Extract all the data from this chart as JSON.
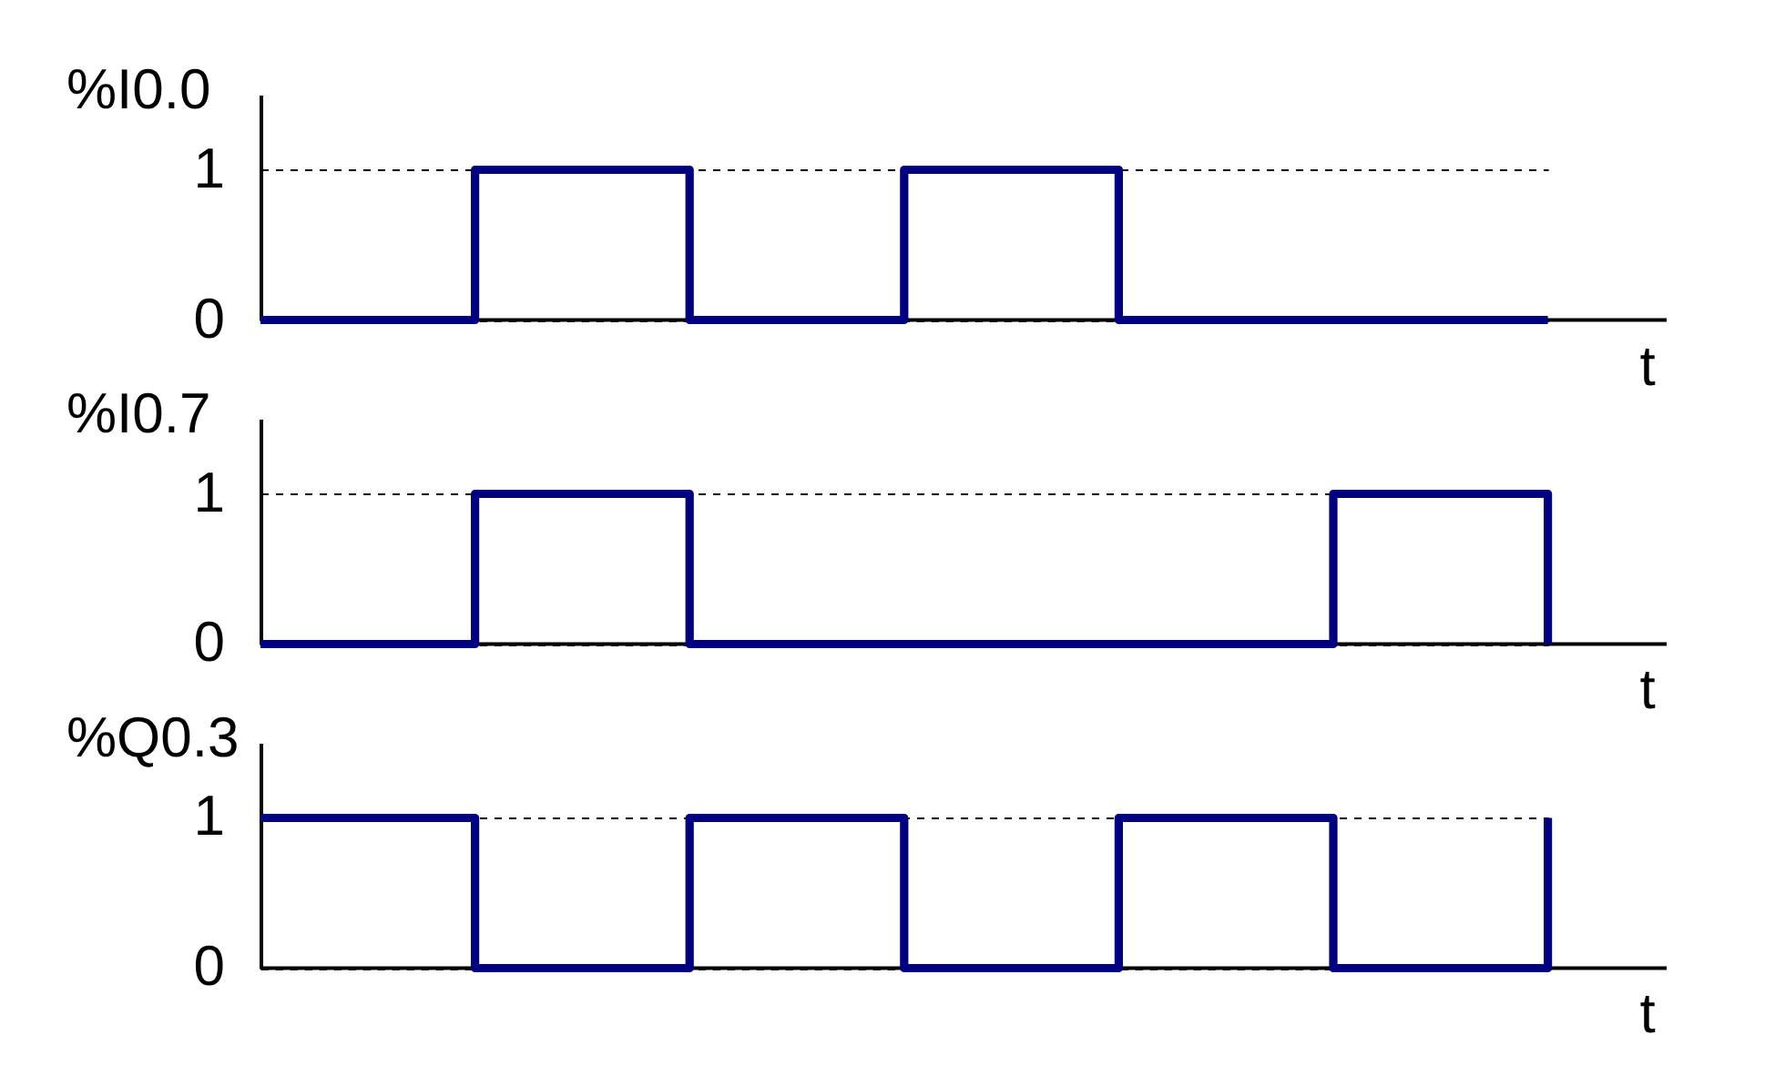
{
  "chart_data": [
    {
      "type": "step",
      "ylabel": "%I0.0",
      "xlabel": "t",
      "categories": [
        null,
        null,
        null,
        null,
        null,
        null,
        null
      ],
      "values": [
        0,
        1,
        0,
        1,
        0,
        0,
        0
      ],
      "color": "#000080",
      "ylim": [
        0,
        1.5
      ],
      "yticks": [
        0,
        1
      ],
      "grid": "y",
      "tick_labels": "y",
      "line_style": "solid"
    },
    {
      "type": "step",
      "ylabel": "%I0.7",
      "xlabel": "t",
      "categories": [
        null,
        null,
        null,
        null,
        null,
        null,
        null
      ],
      "values": [
        0,
        1,
        0,
        0,
        0,
        1,
        0
      ],
      "color": "#000080",
      "ylim": [
        0,
        1.5
      ],
      "yticks": [
        0,
        1
      ],
      "grid": "y",
      "tick_labels": "y",
      "line_style": "solid"
    },
    {
      "type": "step",
      "ylabel": "%Q0.3",
      "xlabel": "t",
      "categories": [
        null,
        null,
        null,
        null,
        null,
        null,
        null
      ],
      "values": [
        1,
        0,
        1,
        0,
        1,
        0,
        1
      ],
      "color": "#000080",
      "ylim": [
        0,
        1.5
      ],
      "yticks": [
        0,
        1
      ],
      "grid": "y",
      "tick_labels": "y",
      "line_style": "solid"
    }
  ]
}
